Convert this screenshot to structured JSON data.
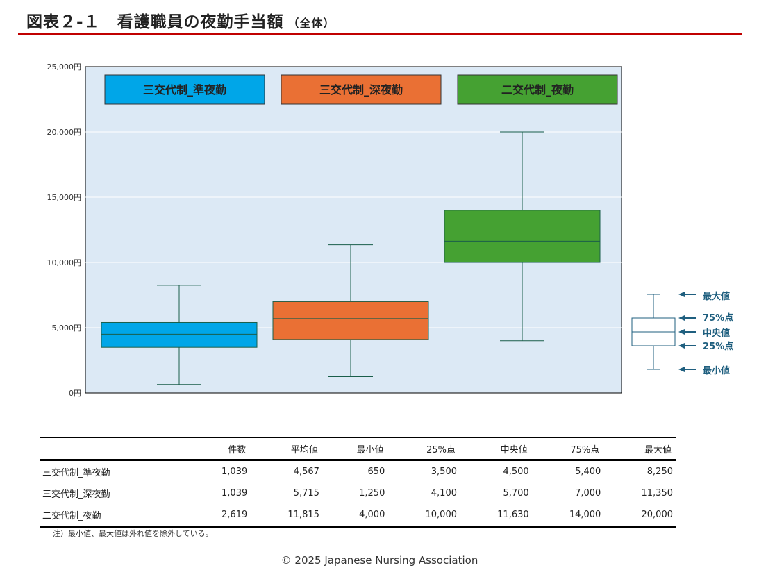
{
  "header": {
    "title": "図表２-１　看護職員の夜勤手当額",
    "subtitle": "（全体）"
  },
  "chart_data": {
    "type": "boxplot",
    "ylim": [
      0,
      25000
    ],
    "yticks": [
      0,
      5000,
      10000,
      15000,
      20000,
      25000
    ],
    "ytick_labels": [
      "0円",
      "5,000円",
      "10,000円",
      "15,000円",
      "20,000円",
      "25,000円"
    ],
    "series": [
      {
        "name": "三交代制_準夜勤",
        "color": "#00a6e8",
        "min": 650,
        "q1": 3500,
        "median": 4500,
        "q3": 5400,
        "max": 8250
      },
      {
        "name": "三交代制_深夜勤",
        "color": "#ea7034",
        "min": 1250,
        "q1": 4100,
        "median": 5700,
        "q3": 7000,
        "max": 11350
      },
      {
        "name": "二交代制_夜勤",
        "color": "#45a132",
        "min": 4000,
        "q1": 10000,
        "median": 11630,
        "q3": 14000,
        "max": 20000
      }
    ],
    "plot_bg": "#dce9f5",
    "whisker_color": "#1a5e4a",
    "key": {
      "labels": [
        "最大値",
        "75%点",
        "中央値",
        "25%点",
        "最小値"
      ],
      "color": "#1f5f7f"
    }
  },
  "table": {
    "headers": [
      "",
      "件数",
      "平均値",
      "最小値",
      "25%点",
      "中央値",
      "75%点",
      "最大値"
    ],
    "rows": [
      [
        "三交代制_準夜勤",
        "1,039",
        "4,567",
        "650",
        "3,500",
        "4,500",
        "5,400",
        "8,250"
      ],
      [
        "三交代制_深夜勤",
        "1,039",
        "5,715",
        "1,250",
        "4,100",
        "5,700",
        "7,000",
        "11,350"
      ],
      [
        "二交代制_夜勤",
        "2,619",
        "11,815",
        "4,000",
        "10,000",
        "11,630",
        "14,000",
        "20,000"
      ]
    ]
  },
  "footnote": "注）最小値、最大値は外れ値を除外している。",
  "copyright": "© 2025 Japanese Nursing Association"
}
